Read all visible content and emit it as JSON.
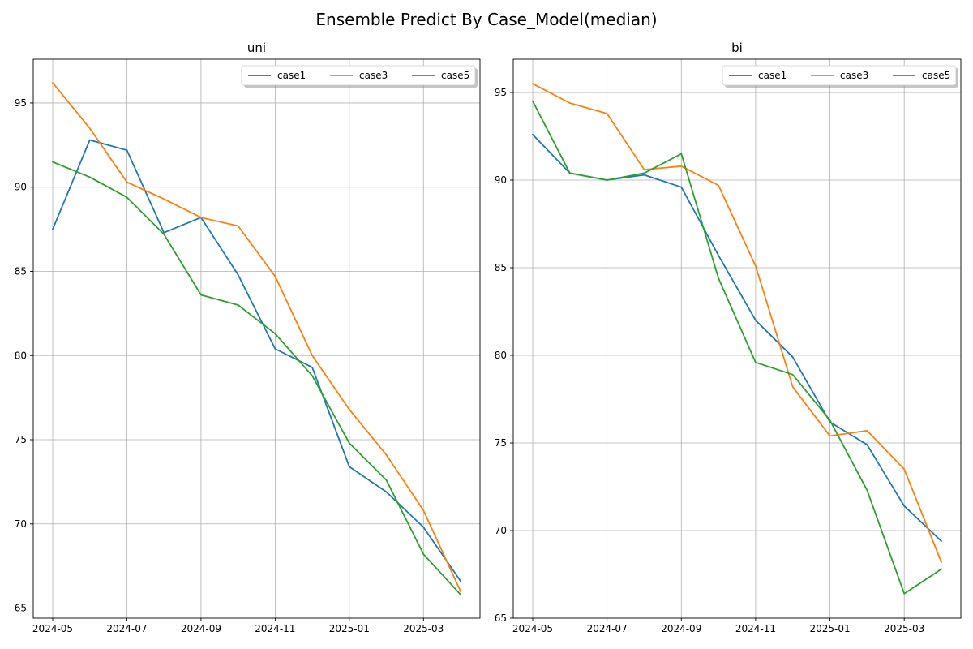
{
  "figure": {
    "suptitle": "Ensemble Predict By Case_Model(median)"
  },
  "colors": {
    "case1": "#1f77b4",
    "case3": "#ff7f0e",
    "case5": "#2ca02c",
    "grid": "#b0b0b0",
    "axis": "#000000"
  },
  "chart_data": [
    {
      "type": "line",
      "title": "uni",
      "xlabel": "",
      "ylabel": "",
      "x": [
        "2024-05",
        "2024-06",
        "2024-07",
        "2024-08",
        "2024-09",
        "2024-10",
        "2024-11",
        "2024-12",
        "2025-01",
        "2025-02",
        "2025-03",
        "2025-04"
      ],
      "xticks": [
        "2024-05",
        "2024-07",
        "2024-09",
        "2024-11",
        "2025-01",
        "2025-03"
      ],
      "yticks": [
        65,
        70,
        75,
        80,
        85,
        90,
        95
      ],
      "ylim": [
        64.4,
        97.6
      ],
      "grid": true,
      "legend": {
        "placement": "top-right",
        "columns": 3
      },
      "series": [
        {
          "name": "case1",
          "values": [
            87.5,
            92.8,
            92.2,
            87.3,
            88.2,
            84.8,
            80.4,
            79.3,
            73.4,
            71.9,
            69.8,
            66.6
          ]
        },
        {
          "name": "case3",
          "values": [
            96.2,
            93.5,
            90.3,
            89.3,
            88.2,
            87.7,
            84.7,
            80.0,
            76.8,
            74.1,
            70.8,
            66.0
          ]
        },
        {
          "name": "case5",
          "values": [
            91.5,
            90.6,
            89.4,
            87.2,
            83.6,
            83.0,
            81.3,
            78.8,
            74.8,
            72.6,
            68.2,
            65.8
          ]
        }
      ]
    },
    {
      "type": "line",
      "title": "bi",
      "xlabel": "",
      "ylabel": "",
      "x": [
        "2024-05",
        "2024-06",
        "2024-07",
        "2024-08",
        "2024-09",
        "2024-10",
        "2024-11",
        "2024-12",
        "2025-01",
        "2025-02",
        "2025-03",
        "2025-04"
      ],
      "xticks": [
        "2024-05",
        "2024-07",
        "2024-09",
        "2024-11",
        "2025-01",
        "2025-03"
      ],
      "yticks": [
        65,
        70,
        75,
        80,
        85,
        90,
        95
      ],
      "ylim": [
        65.0,
        96.9
      ],
      "grid": true,
      "legend": {
        "placement": "top-right",
        "columns": 3
      },
      "series": [
        {
          "name": "case1",
          "values": [
            92.6,
            90.4,
            90.0,
            90.3,
            89.6,
            85.7,
            82.0,
            79.9,
            76.2,
            74.9,
            71.4,
            69.4
          ]
        },
        {
          "name": "case3",
          "values": [
            95.5,
            94.4,
            93.8,
            90.6,
            90.8,
            89.7,
            85.1,
            78.2,
            75.4,
            75.7,
            73.5,
            68.2
          ]
        },
        {
          "name": "case5",
          "values": [
            94.5,
            90.4,
            90.0,
            90.4,
            91.5,
            84.4,
            79.6,
            78.9,
            76.3,
            72.3,
            66.4,
            67.8
          ]
        }
      ]
    }
  ]
}
